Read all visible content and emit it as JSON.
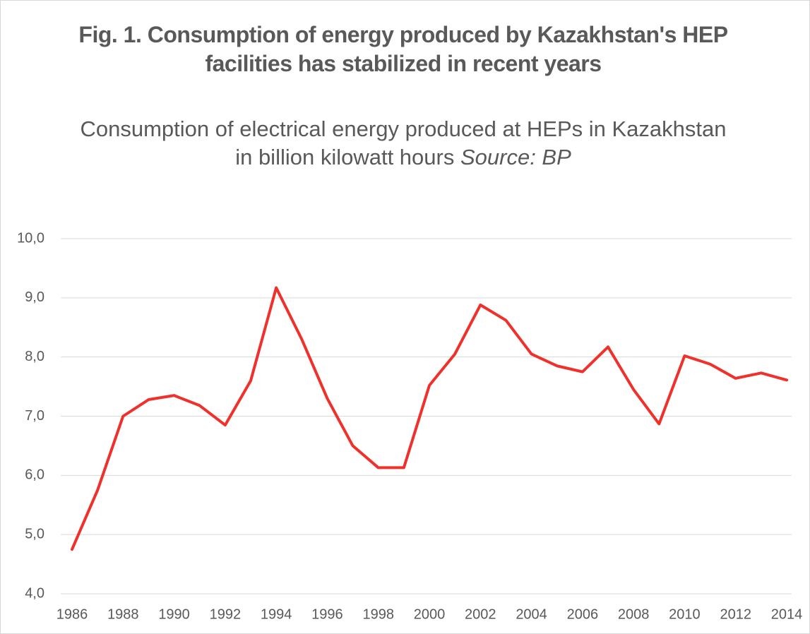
{
  "chart_data": {
    "type": "line",
    "title": "Fig. 1. Consumption of energy produced by Kazakhstan's HEP facilities has stabilized in recent years",
    "subtitle": "Consumption of electrical energy produced at HEPs in Kazakhstan in billion kilowatt hours",
    "source": "Source: BP",
    "x": [
      1986,
      1987,
      1988,
      1989,
      1990,
      1991,
      1992,
      1993,
      1994,
      1995,
      1996,
      1997,
      1998,
      1999,
      2000,
      2001,
      2002,
      2003,
      2004,
      2005,
      2006,
      2007,
      2008,
      2009,
      2010,
      2011,
      2012,
      2013,
      2014
    ],
    "values": [
      4.75,
      5.75,
      7.0,
      7.28,
      7.35,
      7.18,
      6.85,
      7.6,
      9.17,
      8.3,
      7.3,
      6.5,
      6.13,
      6.13,
      7.52,
      8.05,
      8.88,
      8.62,
      8.05,
      7.85,
      7.75,
      8.17,
      7.45,
      6.87,
      8.02,
      7.88,
      7.64,
      7.73,
      7.61
    ],
    "color": "#f0302b",
    "xlim": [
      1986,
      2014
    ],
    "xticks": [
      1986,
      1988,
      1990,
      1992,
      1994,
      1996,
      1998,
      2000,
      2002,
      2004,
      2006,
      2008,
      2010,
      2012,
      2014
    ],
    "ylim": [
      4,
      10
    ],
    "yticks": [
      {
        "value": 4,
        "label": "4,0"
      },
      {
        "value": 5,
        "label": "5,0"
      },
      {
        "value": 6,
        "label": "6,0"
      },
      {
        "value": 7,
        "label": "7,0"
      },
      {
        "value": 8,
        "label": "8,0"
      },
      {
        "value": 9,
        "label": "9,0"
      },
      {
        "value": 10,
        "label": "10,0"
      }
    ],
    "grid": true
  }
}
